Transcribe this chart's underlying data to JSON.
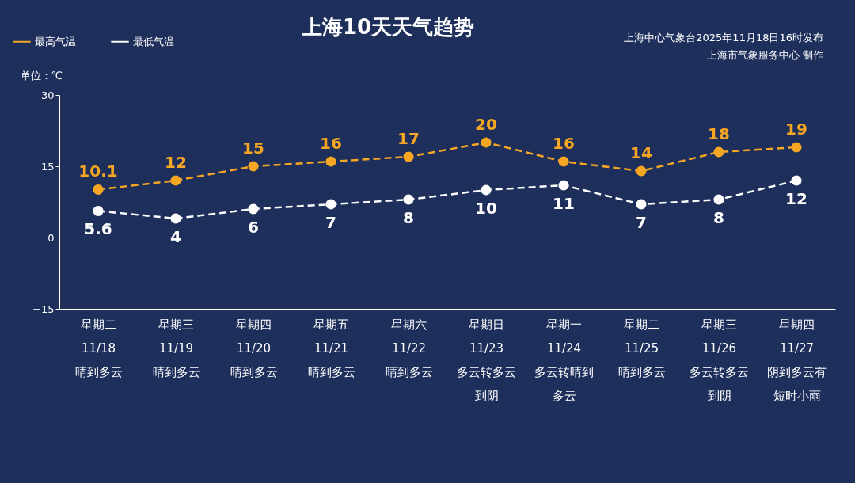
{
  "chart_data": {
    "type": "line",
    "title": "上海10天天气趋势",
    "ylabel": "单位：℃",
    "annotations": [
      "上海中心气象台2025年11月18日16时发布",
      "上海市气象服务中心  制作"
    ],
    "categories": [
      "星期二\n11/18\n晴到多云",
      "星期三\n11/19\n晴到多云",
      "星期四\n11/20\n晴到多云",
      "星期五\n11/21\n晴到多云",
      "星期六\n11/22\n晴到多云",
      "星期日\n11/23\n多云转多云到阴",
      "星期一\n11/24\n多云转晴到多云",
      "星期二\n11/25\n晴到多云",
      "星期三\n11/26\n多云转多云到阴",
      "星期四\n11/27\n阴到多云有短时小雨"
    ],
    "series": [
      {
        "name": "最高气温",
        "color": "#f5a623",
        "values": [
          10.1,
          12,
          15,
          16,
          17,
          20,
          16,
          14,
          18,
          19
        ]
      },
      {
        "name": "最低气温",
        "color": "#ffffff",
        "values": [
          5.6,
          4,
          6,
          7,
          8,
          10,
          11,
          7,
          8,
          12
        ]
      }
    ],
    "ylim": [
      -15,
      30
    ],
    "yticks": [
      -15,
      0,
      15,
      30
    ],
    "grid": false,
    "legend": "top left",
    "marker": "circle",
    "line_style": "dashed",
    "data_labels": true
  }
}
